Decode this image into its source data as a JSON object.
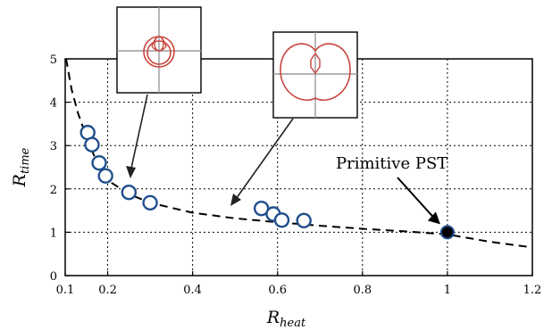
{
  "chart_data": {
    "type": "scatter",
    "xlabel": {
      "main": "R",
      "sub": "heat"
    },
    "ylabel": {
      "main": "R",
      "sub": "time"
    },
    "xlim": [
      0.1,
      1.2
    ],
    "ylim": [
      0,
      5
    ],
    "xticks": [
      0.1,
      0.2,
      0.4,
      0.6,
      0.8,
      1.0,
      1.2
    ],
    "xtick_labels": [
      "0.1",
      "0.2",
      "0.4",
      "0.6",
      "0.8",
      "1",
      "1.2"
    ],
    "yticks": [
      0,
      1,
      2,
      3,
      4,
      5
    ],
    "ytick_labels": [
      "0",
      "1",
      "2",
      "3",
      "4",
      "5"
    ],
    "grid": true,
    "grid_style": "dotted",
    "colors": {
      "marker_edge": "#1f4e8c",
      "fit_line": "#000000",
      "inset_curve": "#c8453d",
      "primitive_marker": "#000000"
    },
    "scatter_points": [
      {
        "x": 0.153,
        "y": 3.3
      },
      {
        "x": 0.163,
        "y": 3.02
      },
      {
        "x": 0.18,
        "y": 2.6
      },
      {
        "x": 0.195,
        "y": 2.3
      },
      {
        "x": 0.25,
        "y": 1.92
      },
      {
        "x": 0.3,
        "y": 1.68
      },
      {
        "x": 0.562,
        "y": 1.55
      },
      {
        "x": 0.59,
        "y": 1.42
      },
      {
        "x": 0.61,
        "y": 1.28
      },
      {
        "x": 0.662,
        "y": 1.27
      }
    ],
    "primitive_point": {
      "x": 1.0,
      "y": 1.0
    },
    "fit_curve": [
      {
        "x": 0.102,
        "y": 5.0
      },
      {
        "x": 0.115,
        "y": 4.3
      },
      {
        "x": 0.13,
        "y": 3.75
      },
      {
        "x": 0.15,
        "y": 3.2
      },
      {
        "x": 0.175,
        "y": 2.6
      },
      {
        "x": 0.2,
        "y": 2.2
      },
      {
        "x": 0.25,
        "y": 1.88
      },
      {
        "x": 0.3,
        "y": 1.68
      },
      {
        "x": 0.4,
        "y": 1.45
      },
      {
        "x": 0.5,
        "y": 1.32
      },
      {
        "x": 0.6,
        "y": 1.23
      },
      {
        "x": 0.7,
        "y": 1.15
      },
      {
        "x": 0.8,
        "y": 1.08
      },
      {
        "x": 0.9,
        "y": 1.02
      },
      {
        "x": 1.0,
        "y": 0.95
      },
      {
        "x": 1.1,
        "y": 0.78
      },
      {
        "x": 1.2,
        "y": 0.65
      }
    ],
    "annotations": [
      {
        "text": "Primitive PST",
        "target": {
          "x": 1.0,
          "y": 1.0
        }
      }
    ],
    "insets": [
      {
        "name": "inset-left",
        "pointer_target": {
          "x": 0.25,
          "y": 2.25
        }
      },
      {
        "name": "inset-right",
        "pointer_target": {
          "x": 0.67,
          "y": 1.65
        }
      }
    ]
  }
}
